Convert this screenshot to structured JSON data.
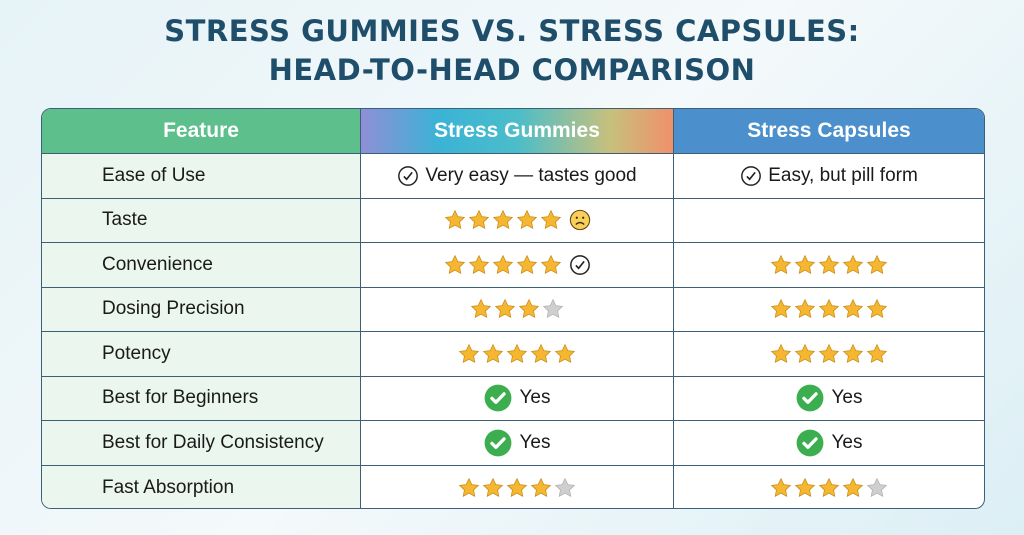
{
  "title": {
    "line1": "STRESS GUMMIES VS. STRESS CAPSULES:",
    "line2": "HEAD-TO-HEAD COMPARISON"
  },
  "headers": [
    "Feature",
    "Stress Gummies",
    "Stress Capsules"
  ],
  "colors": {
    "star_filled": "#f5b731",
    "star_empty": "#cfcfcf",
    "yes_green": "#3cae4f",
    "header_feature": "#5dbf8c",
    "header_capsules": "#4b90cc",
    "title": "#1f4e6b"
  },
  "rows": [
    {
      "feature": "Ease of Use",
      "gummies": {
        "type": "text",
        "icon": "check-outline-icon",
        "text": "Very easy — tastes good"
      },
      "capsules": {
        "type": "text",
        "icon": "check-outline-icon",
        "text": "Easy, but pill form"
      }
    },
    {
      "feature": "Taste",
      "gummies": {
        "type": "stars",
        "rating": 5,
        "max": 5,
        "suffix_icon": "frown-face-icon"
      },
      "capsules": {
        "type": "empty"
      }
    },
    {
      "feature": "Convenience",
      "gummies": {
        "type": "stars",
        "rating": 5,
        "max": 5,
        "suffix_icon": "check-outline-icon"
      },
      "capsules": {
        "type": "stars",
        "rating": 5,
        "max": 5
      }
    },
    {
      "feature": "Dosing Precision",
      "gummies": {
        "type": "stars",
        "rating": 3,
        "max": 4
      },
      "capsules": {
        "type": "stars",
        "rating": 5,
        "max": 5
      }
    },
    {
      "feature": "Potency",
      "gummies": {
        "type": "stars",
        "rating": 5,
        "max": 5
      },
      "capsules": {
        "type": "stars",
        "rating": 5,
        "max": 5
      }
    },
    {
      "feature": "Best for Beginners",
      "gummies": {
        "type": "yes",
        "icon": "green-check-icon",
        "text": "Yes"
      },
      "capsules": {
        "type": "yes",
        "icon": "green-check-icon",
        "text": "Yes"
      }
    },
    {
      "feature": "Best for Daily Consistency",
      "gummies": {
        "type": "yes",
        "icon": "green-check-icon",
        "text": "Yes"
      },
      "capsules": {
        "type": "yes",
        "icon": "green-check-icon",
        "text": "Yes"
      }
    },
    {
      "feature": "Fast Absorption",
      "gummies": {
        "type": "stars",
        "rating": 4,
        "max": 5
      },
      "capsules": {
        "type": "stars",
        "rating": 4,
        "max": 5
      }
    }
  ]
}
